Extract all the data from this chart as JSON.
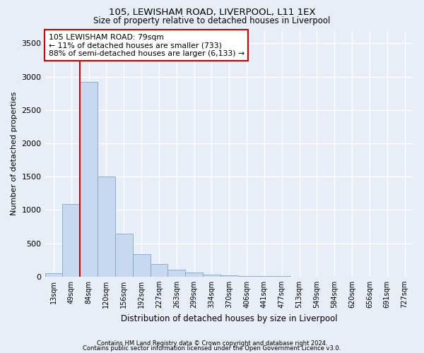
{
  "title": "105, LEWISHAM ROAD, LIVERPOOL, L11 1EX",
  "subtitle": "Size of property relative to detached houses in Liverpool",
  "xlabel": "Distribution of detached houses by size in Liverpool",
  "ylabel": "Number of detached properties",
  "footnote1": "Contains HM Land Registry data © Crown copyright and database right 2024.",
  "footnote2": "Contains public sector information licensed under the Open Government Licence v3.0.",
  "annotation_line1": "105 LEWISHAM ROAD: 79sqm",
  "annotation_line2": "← 11% of detached houses are smaller (733)",
  "annotation_line3": "88% of semi-detached houses are larger (6,133) →",
  "bar_color": "#c8d8ee",
  "bar_edge_color": "#7aa8d0",
  "marker_color": "#cc0000",
  "categories": [
    "13sqm",
    "49sqm",
    "84sqm",
    "120sqm",
    "156sqm",
    "192sqm",
    "227sqm",
    "263sqm",
    "299sqm",
    "334sqm",
    "370sqm",
    "406sqm",
    "441sqm",
    "477sqm",
    "513sqm",
    "549sqm",
    "584sqm",
    "620sqm",
    "656sqm",
    "691sqm",
    "727sqm"
  ],
  "values": [
    50,
    1090,
    2920,
    1500,
    640,
    340,
    185,
    100,
    60,
    35,
    20,
    10,
    5,
    5,
    2,
    2,
    2,
    1,
    1,
    1,
    1
  ],
  "ylim": [
    0,
    3700
  ],
  "yticks": [
    0,
    500,
    1000,
    1500,
    2000,
    2500,
    3000,
    3500
  ],
  "background_color": "#e8eef8",
  "plot_background": "#e8eef8",
  "grid_color": "#ffffff",
  "annotation_box_color": "#ffffff",
  "annotation_border_color": "#cc0000",
  "title_fontsize": 9.5,
  "subtitle_fontsize": 8.5
}
